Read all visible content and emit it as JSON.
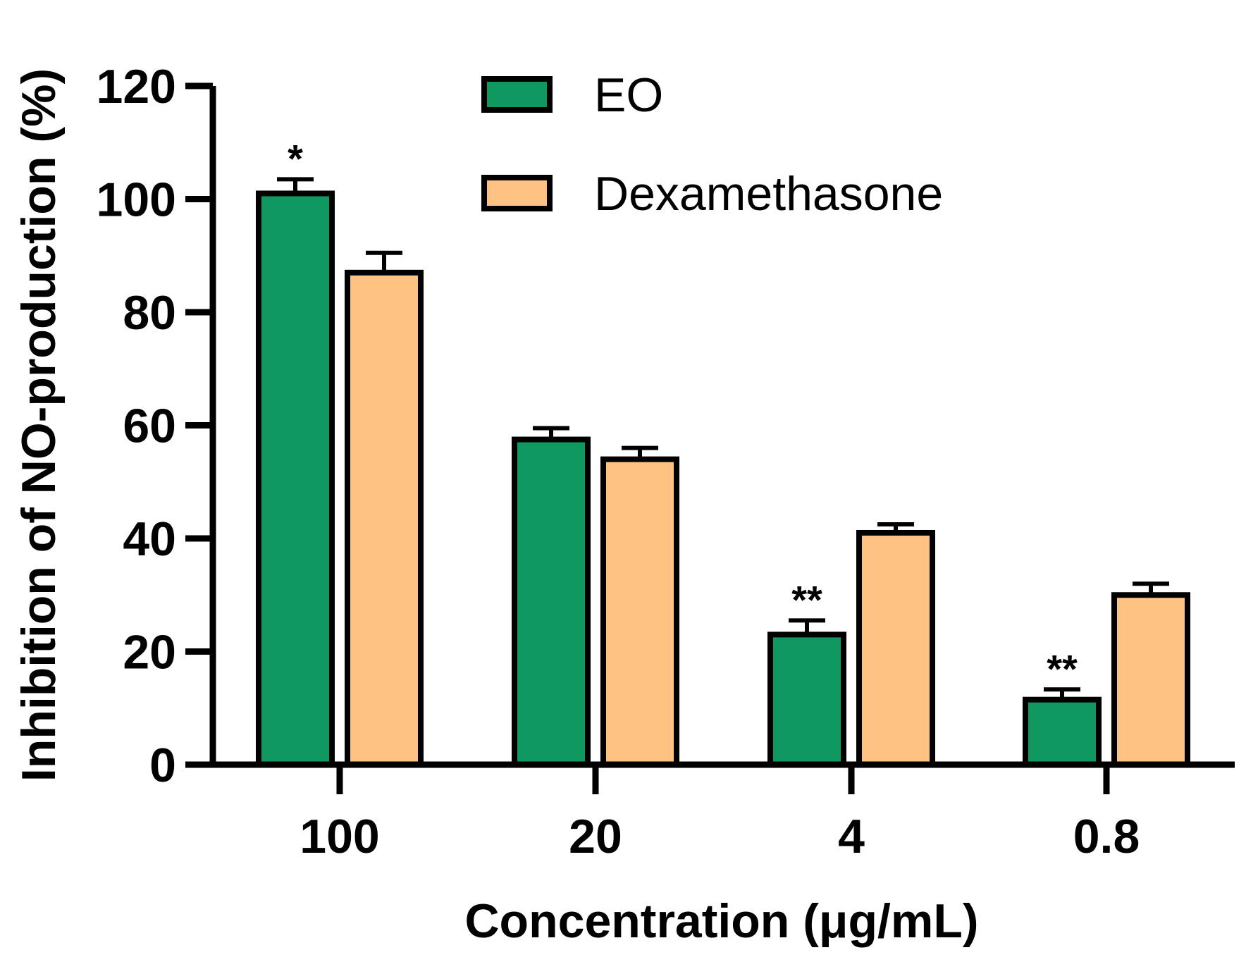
{
  "chart_data": {
    "type": "bar",
    "title": "",
    "xlabel": "Concentration (μg/mL)",
    "ylabel": "Inhibition of NO-production (%)",
    "ylim": [
      0,
      120
    ],
    "yticks": [
      0,
      20,
      40,
      60,
      80,
      100,
      120
    ],
    "categories": [
      "100",
      "20",
      "4",
      "0.8"
    ],
    "series": [
      {
        "name": "EO",
        "color": "#0f9960",
        "values": [
          101,
          57.5,
          23,
          11.5
        ],
        "errors": [
          2.5,
          2,
          2.5,
          1.8
        ],
        "significance": [
          "*",
          "",
          "**",
          "**"
        ]
      },
      {
        "name": "Dexamethasone",
        "color": "#fec283",
        "values": [
          87,
          54,
          41,
          30
        ],
        "errors": [
          3.5,
          2,
          1.5,
          2
        ],
        "significance": [
          "",
          "",
          "",
          ""
        ]
      }
    ],
    "legend_position": "top-center"
  }
}
